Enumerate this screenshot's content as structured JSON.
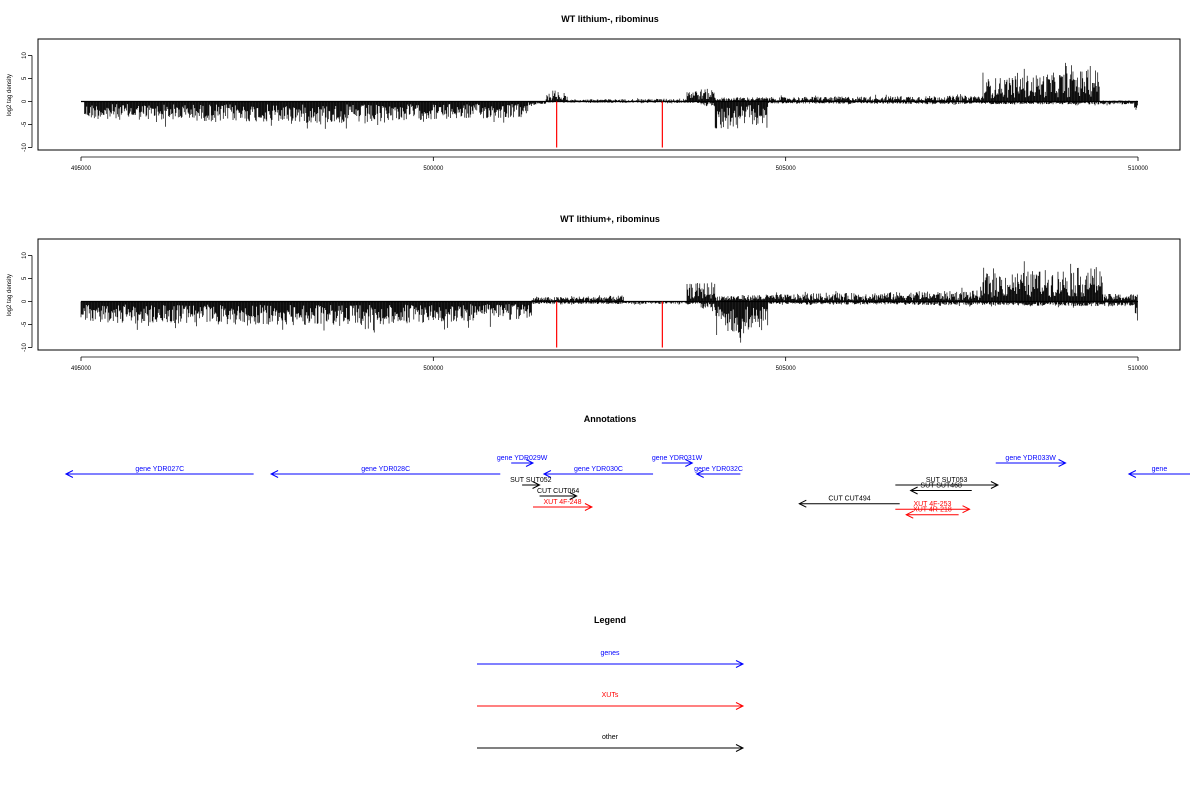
{
  "chart_data": [
    {
      "type": "bar",
      "title": "WT lithium-, ribominus",
      "ylabel": "log2 tag density",
      "xlim": [
        494600,
        510100
      ],
      "ylim": [
        -10,
        13
      ],
      "yticks": [
        -10,
        -5,
        0,
        5,
        10
      ],
      "xticks": [
        495000,
        500000,
        505000,
        510000
      ],
      "marker_color": "#ff0000",
      "marker_x": [
        501750,
        503250
      ],
      "marker_y": -10,
      "series": [
        {
          "strand": "minus",
          "segments": [
            {
              "x": [
                495050,
                499350
              ],
              "y": [
                -3.5,
                -4.5
              ]
            },
            {
              "x": [
                499350,
                501350
              ],
              "y": [
                -3.8,
                -3.2
              ]
            },
            {
              "x": [
                501350,
                501650
              ],
              "y": [
                -0.8,
                -0.4
              ]
            },
            {
              "x": [
                501650,
                503800
              ],
              "y": [
                -0.2,
                -0.3
              ]
            },
            {
              "x": [
                503800,
                504000
              ],
              "y": [
                -1.0,
                -1.0
              ]
            },
            {
              "x": [
                504000,
                504750
              ],
              "y": [
                -5.5,
                -4.5
              ]
            },
            {
              "x": [
                504750,
                509950
              ],
              "y": [
                -0.4,
                -0.6
              ]
            },
            {
              "x": [
                509950,
                510000
              ],
              "y": [
                -2.5,
                -2.5
              ]
            }
          ]
        },
        {
          "strand": "plus",
          "segments": [
            {
              "x": [
                501600,
                501900
              ],
              "y": [
                1.5,
                2.0
              ]
            },
            {
              "x": [
                501900,
                503600
              ],
              "y": [
                0.4,
                0.6
              ]
            },
            {
              "x": [
                503600,
                504000
              ],
              "y": [
                2.5,
                2.5
              ]
            },
            {
              "x": [
                504000,
                507800
              ],
              "y": [
                0.8,
                1.2
              ]
            },
            {
              "x": [
                507800,
                509450
              ],
              "y": [
                4.5,
                6.5
              ]
            },
            {
              "x": [
                509450,
                510000
              ],
              "y": [
                0.2,
                0.2
              ]
            }
          ]
        }
      ]
    },
    {
      "type": "bar",
      "title": "WT lithium+, ribominus",
      "ylabel": "log2 tag density",
      "xlim": [
        494600,
        510100
      ],
      "ylim": [
        -10,
        13
      ],
      "yticks": [
        -10,
        -5,
        0,
        5,
        10
      ],
      "xticks": [
        495000,
        500000,
        505000,
        510000
      ],
      "marker_color": "#ff0000",
      "marker_x": [
        501750,
        503250
      ],
      "marker_y": -10,
      "series": [
        {
          "strand": "minus",
          "segments": [
            {
              "x": [
                495000,
                499350
              ],
              "y": [
                -4.2,
                -5.0
              ]
            },
            {
              "x": [
                499350,
                501400
              ],
              "y": [
                -4.5,
                -3.5
              ]
            },
            {
              "x": [
                501400,
                503800
              ],
              "y": [
                -0.5,
                -0.5
              ]
            },
            {
              "x": [
                503800,
                504000
              ],
              "y": [
                -1.5,
                -1.5
              ]
            },
            {
              "x": [
                504000,
                504750
              ],
              "y": [
                -7.0,
                -6.0
              ]
            },
            {
              "x": [
                504750,
                509950
              ],
              "y": [
                -0.5,
                -1.0
              ]
            },
            {
              "x": [
                509950,
                510000
              ],
              "y": [
                -4.0,
                -4.0
              ]
            }
          ]
        },
        {
          "strand": "plus",
          "segments": [
            {
              "x": [
                501400,
                502700
              ],
              "y": [
                0.8,
                1.2
              ]
            },
            {
              "x": [
                503600,
                504000
              ],
              "y": [
                3.5,
                4.0
              ]
            },
            {
              "x": [
                504000,
                507800
              ],
              "y": [
                1.2,
                2.2
              ]
            },
            {
              "x": [
                507800,
                509500
              ],
              "y": [
                5.5,
                7.0
              ]
            },
            {
              "x": [
                509500,
                510000
              ],
              "y": [
                1.5,
                1.5
              ]
            }
          ]
        }
      ]
    }
  ],
  "annotations": {
    "title": "Annotations",
    "items": [
      {
        "label": "gene YDR027C",
        "kind": "gene",
        "strand": "-",
        "start": 495250,
        "end": 499550,
        "row": 1
      },
      {
        "label": "gene YDR028C",
        "kind": "gene",
        "strand": "-",
        "start": 499950,
        "end": 505200,
        "row": 1
      },
      {
        "label": "gene YDR029W",
        "kind": "gene",
        "strand": "+",
        "start": 505450,
        "end": 505950,
        "row": 0
      },
      {
        "label": "gene YDR030C",
        "kind": "gene",
        "strand": "-",
        "start": 506200,
        "end": 508700,
        "row": 1
      },
      {
        "label": "gene YDR031W",
        "kind": "gene",
        "strand": "+",
        "start": 508900,
        "end": 509600,
        "row": 0
      },
      {
        "label": "gene YDR032C",
        "kind": "gene",
        "strand": "-",
        "start": 509700,
        "end": 510700,
        "row": 1
      },
      {
        "label": "gene YDR033W",
        "kind": "gene",
        "strand": "+",
        "start": 516550,
        "end": 518150,
        "row": 0
      },
      {
        "label": "gene",
        "kind": "gene",
        "strand": "-",
        "start": 519600,
        "end": 521000,
        "row": 1
      },
      {
        "label": "SUT SUT052",
        "kind": "other",
        "strand": "+",
        "start": 505700,
        "end": 506100,
        "row": 2
      },
      {
        "label": "CUT CUT064",
        "kind": "other",
        "strand": "+",
        "start": 506100,
        "end": 506950,
        "row": 3
      },
      {
        "label": "XUT 4F-248",
        "kind": "XUTs",
        "strand": "+",
        "start": 505950,
        "end": 507300,
        "row": 4
      },
      {
        "label": "SUT SUT053",
        "kind": "other",
        "strand": "+",
        "start": 514250,
        "end": 516600,
        "row": 2
      },
      {
        "label": "SUT SUT468",
        "kind": "other",
        "strand": "-",
        "start": 514600,
        "end": 516000,
        "row": 2.5
      },
      {
        "label": "CUT CUT494",
        "kind": "other",
        "strand": "-",
        "start": 512050,
        "end": 514350,
        "row": 3.7
      },
      {
        "label": "XUT 4F-253",
        "kind": "XUTs",
        "strand": "+",
        "start": 514250,
        "end": 515950,
        "row": 4.2
      },
      {
        "label": "XUT 4R-218",
        "kind": "XUTs",
        "strand": "-",
        "start": 514500,
        "end": 515700,
        "row": 4.7
      }
    ]
  },
  "legend": {
    "title": "Legend",
    "entries": [
      {
        "label": "genes",
        "color": "#0000ff"
      },
      {
        "label": "XUTs",
        "color": "#ff0000"
      },
      {
        "label": "other",
        "color": "#000000"
      }
    ]
  },
  "colors": {
    "gene": "#0000ff",
    "XUTs": "#ff0000",
    "other": "#000000"
  }
}
